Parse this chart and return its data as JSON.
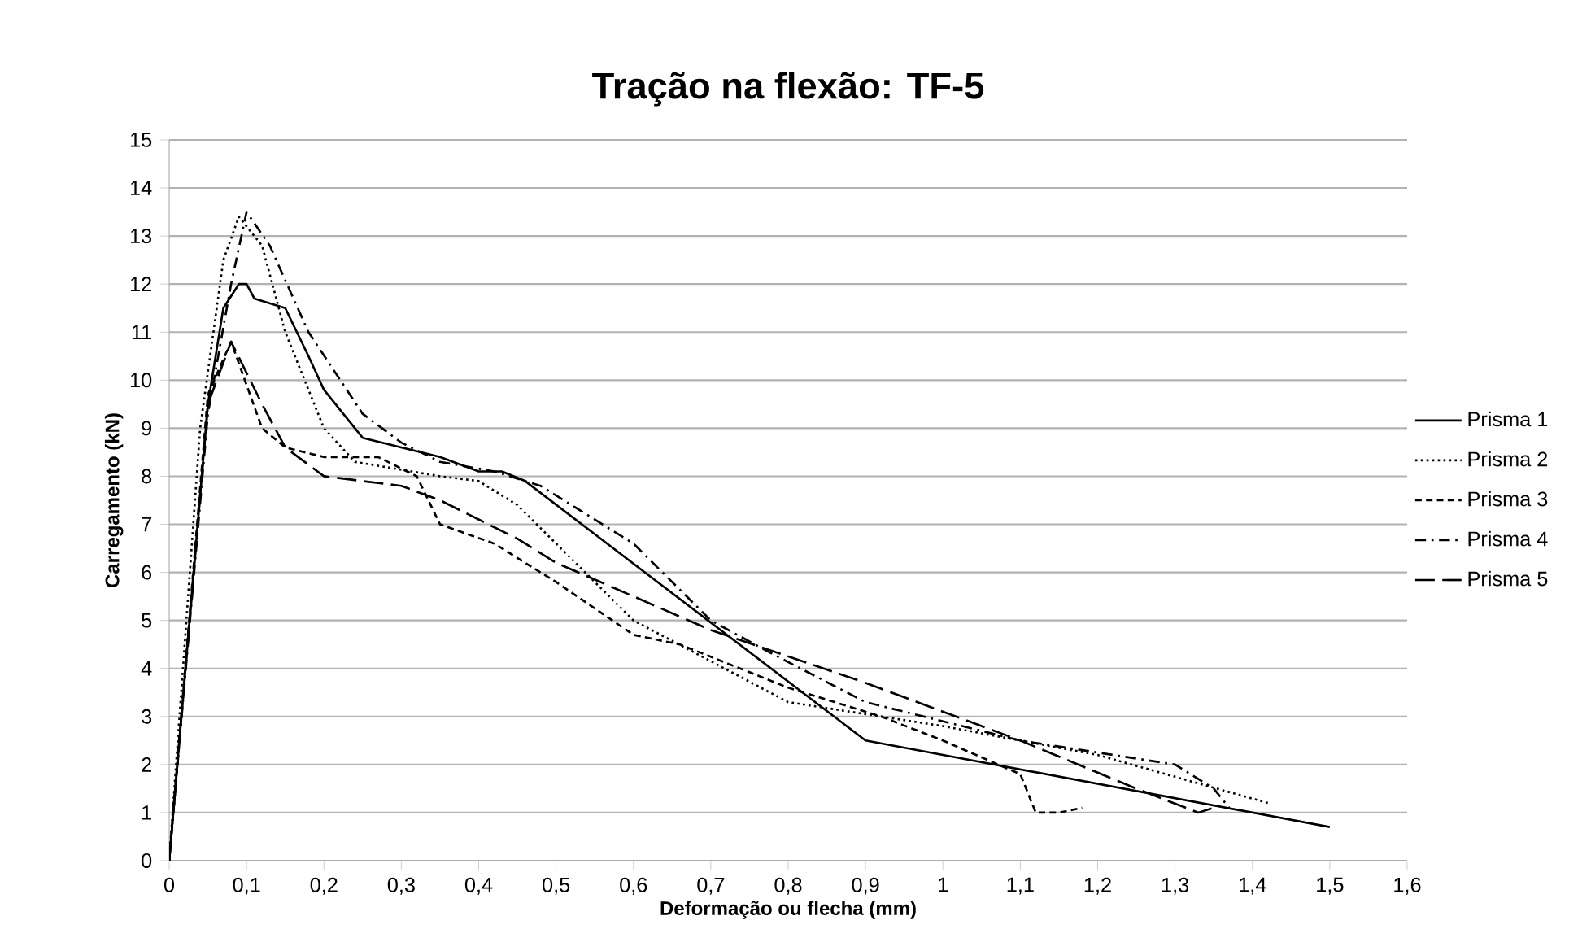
{
  "chart_data": {
    "type": "line",
    "title": "Tração na flexão: TF-5",
    "xlabel": "Deformação ou flecha (mm)",
    "ylabel": "Carregamento (kN)",
    "xlim": [
      0,
      1.6
    ],
    "ylim": [
      0,
      15
    ],
    "xticks": [
      0,
      {
        "value": 0.1,
        "label": "0,1"
      },
      {
        "value": 0.2,
        "label": "0,2"
      },
      {
        "value": 0.3,
        "label": "0,3"
      },
      {
        "value": 0.4,
        "label": "0,4"
      },
      {
        "value": 0.5,
        "label": "0,5"
      },
      {
        "value": 0.6,
        "label": "0,6"
      },
      {
        "value": 0.7,
        "label": "0,7"
      },
      {
        "value": 0.8,
        "label": "0,8"
      },
      {
        "value": 0.9,
        "label": "0,9"
      },
      1,
      {
        "value": 1.1,
        "label": "1,1"
      },
      {
        "value": 1.2,
        "label": "1,2"
      },
      {
        "value": 1.3,
        "label": "1,3"
      },
      {
        "value": 1.4,
        "label": "1,4"
      },
      {
        "value": 1.5,
        "label": "1,5"
      },
      {
        "value": 1.6,
        "label": "1,6"
      }
    ],
    "yticks": [
      0,
      1,
      2,
      3,
      4,
      5,
      6,
      7,
      8,
      9,
      10,
      11,
      12,
      13,
      14,
      15
    ],
    "grid": "y",
    "legend": "right",
    "marker": "none",
    "series": [
      {
        "name": "Prisma 1",
        "color": "#000000",
        "line_style": "solid",
        "x": [
          0,
          0.05,
          0.07,
          0.09,
          0.1,
          0.11,
          0.15,
          0.18,
          0.2,
          0.25,
          0.3,
          0.35,
          0.4,
          0.43,
          0.46,
          0.9,
          1.0,
          1.5
        ],
        "values": [
          0,
          9.5,
          11.5,
          12,
          12,
          11.7,
          11.5,
          10.5,
          9.8,
          8.8,
          8.6,
          8.4,
          8.1,
          8.1,
          7.9,
          2.5,
          2.2,
          0.7
        ]
      },
      {
        "name": "Prisma 2",
        "color": "#000000",
        "line_style": "dotted",
        "x": [
          0,
          0.04,
          0.07,
          0.09,
          0.12,
          0.15,
          0.2,
          0.24,
          0.35,
          0.4,
          0.45,
          0.6,
          0.8,
          1.0,
          1.2,
          1.42
        ],
        "values": [
          0,
          9,
          12.5,
          13.4,
          12.8,
          11,
          9,
          8.3,
          8,
          7.9,
          7.4,
          5,
          3.3,
          2.8,
          2.2,
          1.2
        ]
      },
      {
        "name": "Prisma 3",
        "color": "#000000",
        "line_style": "dashed",
        "x": [
          0,
          0.05,
          0.08,
          0.12,
          0.15,
          0.2,
          0.27,
          0.32,
          0.35,
          0.42,
          0.5,
          0.6,
          0.66,
          0.8,
          0.92,
          1.0,
          1.1,
          1.12,
          1.15,
          1.18
        ],
        "values": [
          0,
          9.7,
          10.8,
          9,
          8.6,
          8.4,
          8.4,
          8,
          7,
          6.6,
          5.8,
          4.7,
          4.5,
          3.6,
          3,
          2.5,
          1.8,
          1,
          1,
          1.1
        ]
      },
      {
        "name": "Prisma 4",
        "color": "#000000",
        "line_style": "dashed",
        "x": [
          0,
          0.05,
          0.08,
          0.1,
          0.13,
          0.18,
          0.25,
          0.3,
          0.35,
          0.42,
          0.48,
          0.6,
          0.7,
          0.78,
          0.9,
          1.1,
          1.3,
          1.35,
          1.37
        ],
        "values": [
          0,
          9.3,
          12,
          13.5,
          12.8,
          11,
          9.3,
          8.7,
          8.3,
          8.1,
          7.8,
          6.6,
          5,
          4.3,
          3.3,
          2.5,
          2,
          1.5,
          1.1
        ]
      },
      {
        "name": "Prisma 5",
        "color": "#000000",
        "line_style": "dashed",
        "x": [
          0,
          0.05,
          0.08,
          0.12,
          0.15,
          0.2,
          0.3,
          0.35,
          0.45,
          0.5,
          0.6,
          0.7,
          0.9,
          1.1,
          1.25,
          1.33,
          1.35
        ],
        "values": [
          0,
          9.5,
          10.8,
          9.5,
          8.6,
          8,
          7.8,
          7.5,
          6.7,
          6.2,
          5.5,
          4.8,
          3.7,
          2.5,
          1.5,
          1.0,
          1.1
        ]
      }
    ]
  }
}
